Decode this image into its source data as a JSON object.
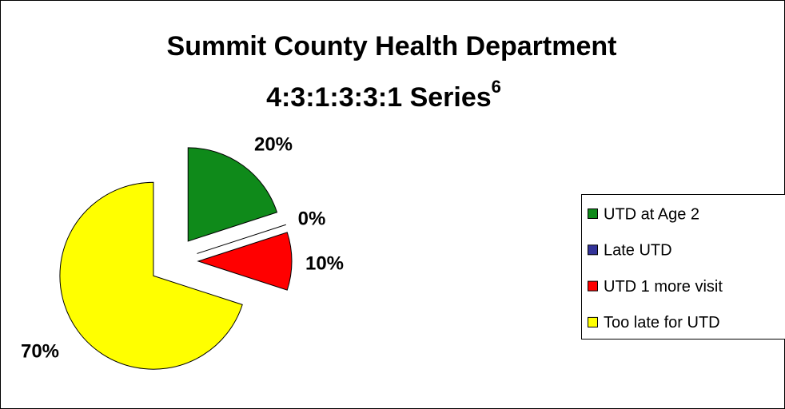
{
  "chart_data": {
    "type": "pie",
    "title": [
      "Summit County Health Department",
      "4:3:1:3:3:1 Series"
    ],
    "title_superscript": "6",
    "categories": [
      "UTD at Age 2",
      "Late UTD",
      "UTD 1 more visit",
      "Too late for UTD"
    ],
    "values": [
      20,
      0,
      10,
      70
    ],
    "value_labels": [
      "20%",
      "0%",
      "10%",
      "70%"
    ],
    "colors": [
      "#0f8a1a",
      "#333399",
      "#ff0000",
      "#ffff00"
    ],
    "exploded": true,
    "legend": "right"
  }
}
